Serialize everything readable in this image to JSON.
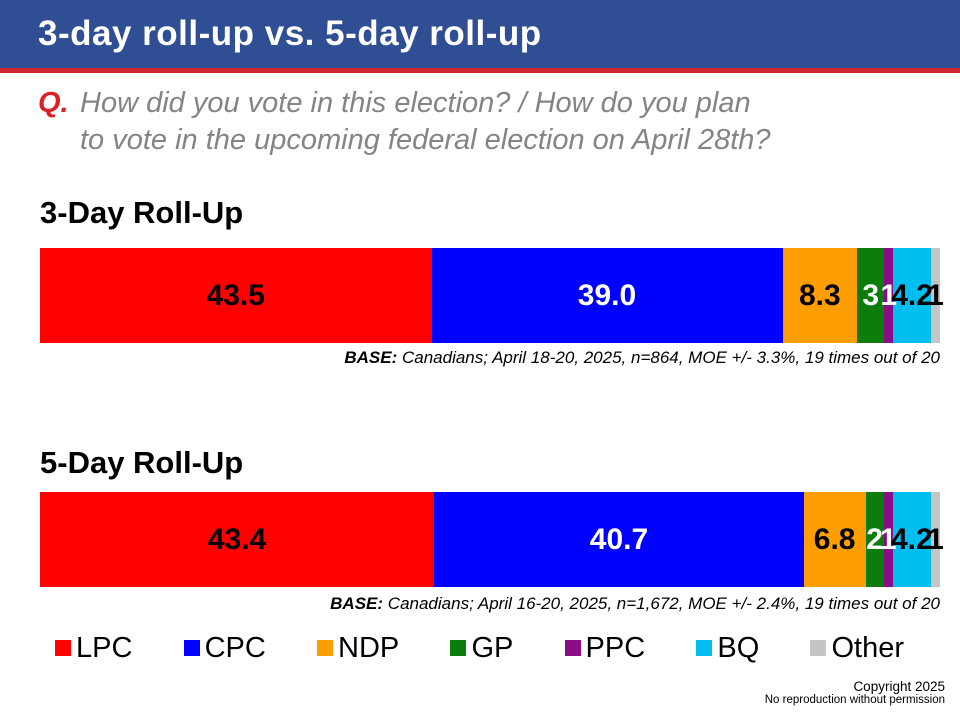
{
  "header": {
    "title": "3-day roll-up vs. 5-day roll-up"
  },
  "question": {
    "prefix": "Q.",
    "lines": [
      "How did you vote in this election? / How do you plan",
      "to vote in the upcoming federal election on April 28th?"
    ]
  },
  "charts": [
    {
      "title": "3-Day Roll-Up",
      "base_label": "BASE:",
      "base_text": " Canadians; April 18-20, 2025, n=864, MOE +/- 3.3%, 19 times out of 20",
      "segments": [
        {
          "party": "LPC",
          "value": 43.5,
          "label": "43.5",
          "color": "#FF0000",
          "text_color": "#000000"
        },
        {
          "party": "CPC",
          "value": 39.0,
          "label": "39.0",
          "color": "#0000FF",
          "text_color": "#FFFFFF"
        },
        {
          "party": "NDP",
          "value": 8.3,
          "label": "8.3",
          "color": "#FF9E00",
          "text_color": "#000000"
        },
        {
          "party": "GP",
          "value": 3,
          "label": "3",
          "color": "#0C7D0C",
          "text_color": "#FFFFFF"
        },
        {
          "party": "PPC",
          "value": 1,
          "label": "1",
          "color": "#8A0C86",
          "text_color": "#FFFFFF"
        },
        {
          "party": "BQ",
          "value": 4.2,
          "label": "4.2",
          "color": "#00BFF0",
          "text_color": "#000000"
        },
        {
          "party": "Other",
          "value": 1,
          "label": "1",
          "color": "#C5C5C5",
          "text_color": "#000000"
        }
      ]
    },
    {
      "title": "5-Day Roll-Up",
      "base_label": "BASE:",
      "base_text": " Canadians; April 16-20, 2025, n=1,672, MOE +/- 2.4%, 19 times out of 20",
      "segments": [
        {
          "party": "LPC",
          "value": 43.4,
          "label": "43.4",
          "color": "#FF0000",
          "text_color": "#000000"
        },
        {
          "party": "CPC",
          "value": 40.7,
          "label": "40.7",
          "color": "#0000FF",
          "text_color": "#FFFFFF"
        },
        {
          "party": "NDP",
          "value": 6.8,
          "label": "6.8",
          "color": "#FF9E00",
          "text_color": "#000000"
        },
        {
          "party": "GP",
          "value": 2,
          "label": "2",
          "color": "#0C7D0C",
          "text_color": "#FFFFFF"
        },
        {
          "party": "PPC",
          "value": 1,
          "label": "1",
          "color": "#8A0C86",
          "text_color": "#FFFFFF"
        },
        {
          "party": "BQ",
          "value": 4.2,
          "label": "4.2",
          "color": "#00BFF0",
          "text_color": "#000000"
        },
        {
          "party": "Other",
          "value": 1,
          "label": "1",
          "color": "#C5C5C5",
          "text_color": "#000000"
        }
      ]
    }
  ],
  "legend": [
    {
      "label": "LPC",
      "color": "#FF0000"
    },
    {
      "label": "CPC",
      "color": "#0000FF"
    },
    {
      "label": "NDP",
      "color": "#FF9E00"
    },
    {
      "label": "GP",
      "color": "#0C7D0C"
    },
    {
      "label": "PPC",
      "color": "#8A0C86"
    },
    {
      "label": "BQ",
      "color": "#00BFF0"
    },
    {
      "label": "Other",
      "color": "#C5C5C5"
    }
  ],
  "footer": {
    "line1": "Copyright 2025",
    "line2": "No reproduction without permission"
  },
  "chart_data": [
    {
      "type": "bar",
      "subtype": "stacked-horizontal-100pct",
      "title": "3-Day Roll-Up",
      "categories": [
        "LPC",
        "CPC",
        "NDP",
        "GP",
        "PPC",
        "BQ",
        "Other"
      ],
      "values": [
        43.5,
        39.0,
        8.3,
        3,
        1,
        4.2,
        1
      ],
      "xlabel": "",
      "ylabel": "",
      "note": "BASE: Canadians; April 18-20, 2025, n=864, MOE +/- 3.3%, 19 times out of 20",
      "legend_position": "bottom",
      "grid": false
    },
    {
      "type": "bar",
      "subtype": "stacked-horizontal-100pct",
      "title": "5-Day Roll-Up",
      "categories": [
        "LPC",
        "CPC",
        "NDP",
        "GP",
        "PPC",
        "BQ",
        "Other"
      ],
      "values": [
        43.4,
        40.7,
        6.8,
        2,
        1,
        4.2,
        1
      ],
      "xlabel": "",
      "ylabel": "",
      "note": "BASE: Canadians; April 16-20, 2025, n=1,672, MOE +/- 2.4%, 19 times out of 20",
      "legend_position": "bottom",
      "grid": false
    }
  ]
}
